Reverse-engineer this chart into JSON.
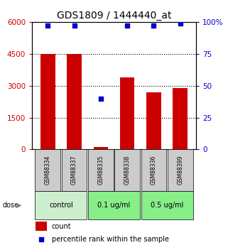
{
  "title": "GDS1809 / 1444440_at",
  "samples": [
    "GSM88334",
    "GSM88337",
    "GSM88335",
    "GSM88338",
    "GSM88336",
    "GSM88399"
  ],
  "counts": [
    4500,
    4500,
    100,
    3400,
    2700,
    2900
  ],
  "percentiles": [
    97,
    97,
    40,
    97,
    97,
    99
  ],
  "dose_groups": [
    {
      "label": "control",
      "color": "#cceecc",
      "start": 0,
      "end": 2
    },
    {
      "label": "0.1 ug/ml",
      "color": "#88ee88",
      "start": 2,
      "end": 4
    },
    {
      "label": "0.5 ug/ml",
      "color": "#88ee88",
      "start": 4,
      "end": 6
    }
  ],
  "bar_color": "#cc0000",
  "dot_color": "#0000cc",
  "ylim_left": [
    0,
    6000
  ],
  "ylim_right": [
    0,
    100
  ],
  "yticks_left": [
    0,
    1500,
    3000,
    4500,
    6000
  ],
  "yticks_right": [
    0,
    25,
    50,
    75,
    100
  ],
  "ylabel_left_color": "#cc0000",
  "ylabel_right_color": "#0000cc",
  "grid_lines": [
    1500,
    3000,
    4500
  ],
  "legend_count_label": "count",
  "legend_percentile_label": "percentile rank within the sample",
  "background_color": "#ffffff",
  "title_fontsize": 10,
  "sample_box_color": "#cccccc",
  "dose_label": "dose"
}
